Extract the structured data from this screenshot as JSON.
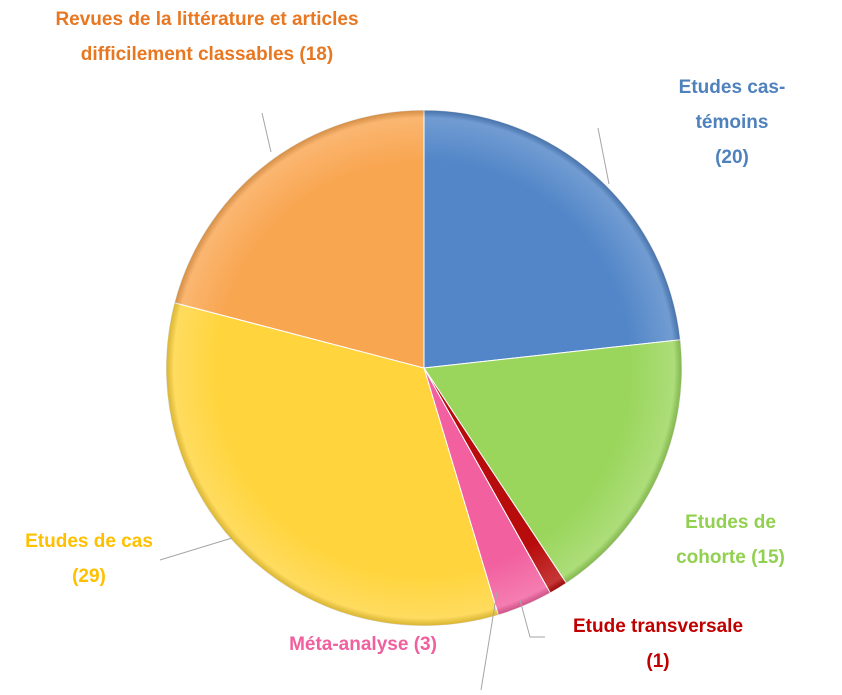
{
  "chart_data": {
    "type": "pie",
    "categories": [
      "Etudes cas-témoins",
      "Etudes de cohorte",
      "Etude transversale",
      "Méta-analyse",
      "Etudes de cas",
      "Revues de la littérature et articles difficilement classables"
    ],
    "values": [
      20,
      15,
      1,
      3,
      29,
      18
    ],
    "value_labels": [
      "(20)",
      "(15)",
      "(1)",
      "(3)",
      "(29)",
      "(18)"
    ],
    "colors": [
      "#5286c8",
      "#9ad65c",
      "#b80b0b",
      "#f2609f",
      "#ffd43c",
      "#f9a651"
    ],
    "label_colors": [
      "#4f81bd",
      "#92d050",
      "#c00000",
      "#f0609e",
      "#ffc000",
      "#e87722"
    ]
  }
}
